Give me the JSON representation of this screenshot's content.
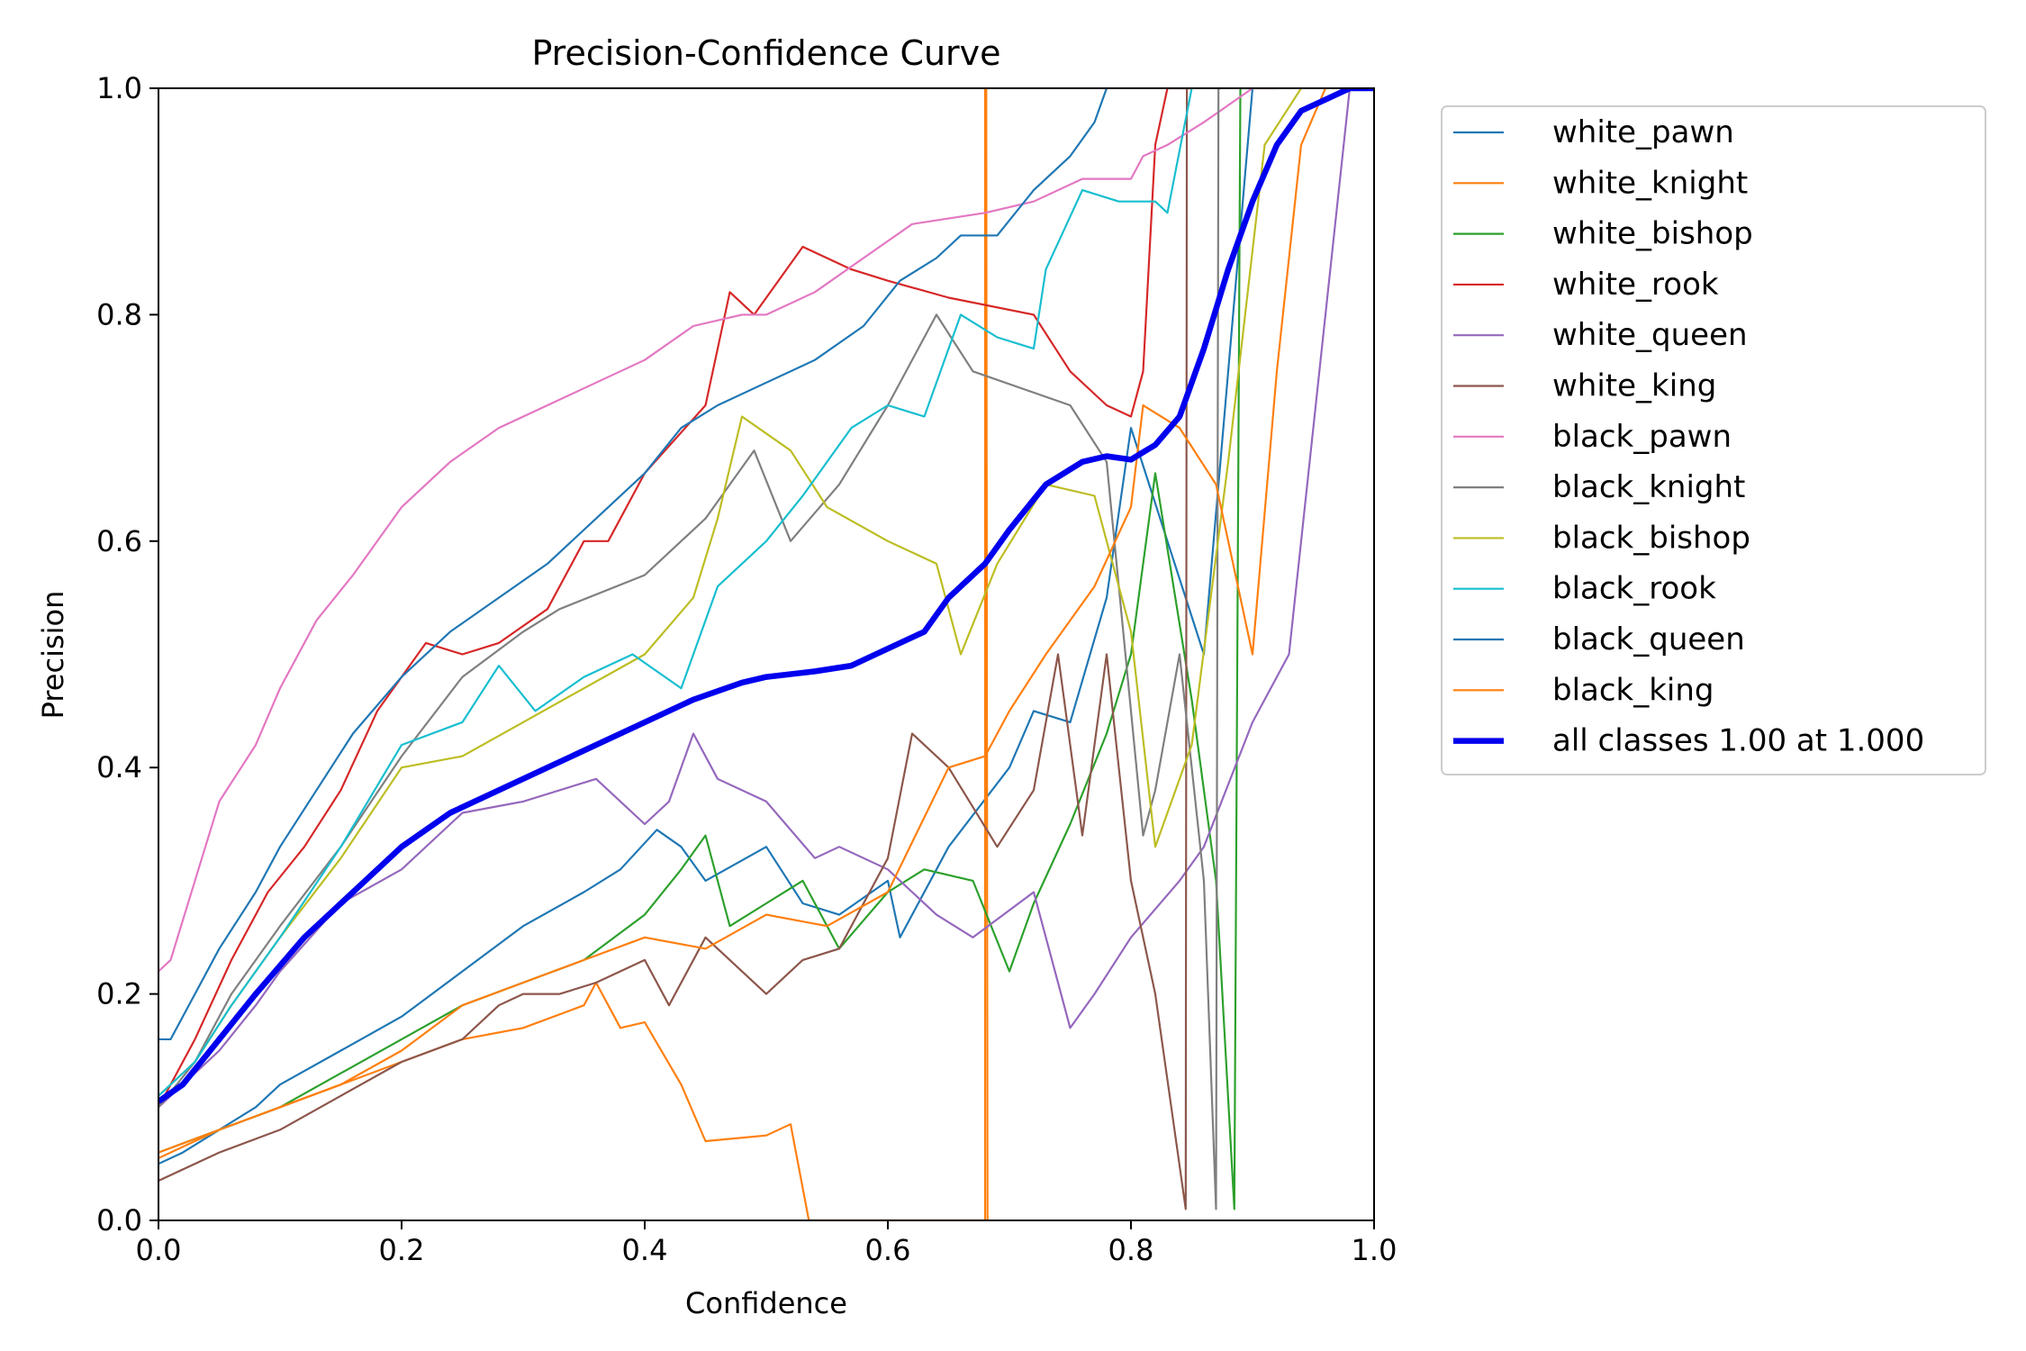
{
  "chart_data": {
    "type": "line",
    "title": "Precision-Confidence Curve",
    "xlabel": "Confidence",
    "ylabel": "Precision",
    "xlim": [
      0,
      1
    ],
    "ylim": [
      0,
      1
    ],
    "xticks": [
      "0.0",
      "0.2",
      "0.4",
      "0.6",
      "0.8",
      "1.0"
    ],
    "yticks": [
      "0.0",
      "0.2",
      "0.4",
      "0.6",
      "0.8",
      "1.0"
    ],
    "grid": false,
    "legend": "outside-right-top",
    "series": [
      {
        "name": "white_pawn",
        "color": "#1f77b4",
        "width": 1.5,
        "x": [
          0,
          0.02,
          0.05,
          0.08,
          0.1,
          0.15,
          0.2,
          0.25,
          0.3,
          0.35,
          0.38,
          0.41,
          0.43,
          0.45,
          0.5,
          0.53,
          0.56,
          0.6,
          0.61,
          0.65,
          0.7,
          0.72,
          0.75,
          0.78,
          0.8,
          0.83,
          0.86,
          0.88,
          0.9
        ],
        "y": [
          0.05,
          0.06,
          0.08,
          0.1,
          0.12,
          0.15,
          0.18,
          0.22,
          0.26,
          0.29,
          0.31,
          0.345,
          0.33,
          0.3,
          0.33,
          0.28,
          0.27,
          0.3,
          0.25,
          0.33,
          0.4,
          0.45,
          0.44,
          0.55,
          0.7,
          0.6,
          0.5,
          0.75,
          1.0
        ]
      },
      {
        "name": "white_knight",
        "color": "#ff7f0e",
        "width": 1.5,
        "x": [
          0,
          0.05,
          0.1,
          0.15,
          0.2,
          0.25,
          0.3,
          0.35,
          0.36,
          0.38,
          0.4,
          0.43,
          0.45,
          0.5,
          0.52,
          0.535,
          0.68,
          0.68,
          0.681,
          0.682
        ],
        "y": [
          0.055,
          0.08,
          0.1,
          0.12,
          0.14,
          0.16,
          0.17,
          0.19,
          0.21,
          0.17,
          0.175,
          0.12,
          0.07,
          0.075,
          0.085,
          0.0,
          0.0,
          1.0,
          1.0,
          0.0
        ]
      },
      {
        "name": "white_bishop",
        "color": "#2ca02c",
        "width": 1.5,
        "x": [
          0,
          0.05,
          0.1,
          0.15,
          0.2,
          0.25,
          0.3,
          0.35,
          0.4,
          0.43,
          0.45,
          0.47,
          0.5,
          0.53,
          0.56,
          0.6,
          0.63,
          0.67,
          0.7,
          0.72,
          0.75,
          0.78,
          0.8,
          0.82,
          0.85,
          0.87,
          0.885,
          0.89,
          0.9
        ],
        "y": [
          0.06,
          0.08,
          0.1,
          0.13,
          0.16,
          0.19,
          0.21,
          0.23,
          0.27,
          0.31,
          0.34,
          0.26,
          0.28,
          0.3,
          0.24,
          0.29,
          0.31,
          0.3,
          0.22,
          0.28,
          0.35,
          0.43,
          0.5,
          0.66,
          0.46,
          0.3,
          0.01,
          1.0,
          1.0
        ]
      },
      {
        "name": "white_rook",
        "color": "#d62728",
        "width": 1.5,
        "x": [
          0,
          0.03,
          0.06,
          0.09,
          0.12,
          0.15,
          0.18,
          0.22,
          0.25,
          0.28,
          0.32,
          0.35,
          0.37,
          0.4,
          0.45,
          0.47,
          0.49,
          0.53,
          0.57,
          0.6,
          0.65,
          0.72,
          0.75,
          0.78,
          0.8,
          0.81,
          0.82,
          0.83,
          0.85
        ],
        "y": [
          0.1,
          0.16,
          0.23,
          0.29,
          0.33,
          0.38,
          0.45,
          0.51,
          0.5,
          0.51,
          0.54,
          0.6,
          0.6,
          0.66,
          0.72,
          0.82,
          0.8,
          0.86,
          0.84,
          0.83,
          0.815,
          0.8,
          0.75,
          0.72,
          0.71,
          0.75,
          0.95,
          1.0,
          1.0
        ]
      },
      {
        "name": "white_queen",
        "color": "#9467bd",
        "width": 1.5,
        "x": [
          0,
          0.02,
          0.05,
          0.08,
          0.1,
          0.15,
          0.2,
          0.25,
          0.3,
          0.36,
          0.4,
          0.42,
          0.44,
          0.46,
          0.5,
          0.54,
          0.56,
          0.6,
          0.64,
          0.67,
          0.72,
          0.75,
          0.77,
          0.8,
          0.84,
          0.86,
          0.9,
          0.93,
          0.96,
          0.98,
          1.0
        ],
        "y": [
          0.1,
          0.12,
          0.15,
          0.19,
          0.22,
          0.28,
          0.31,
          0.36,
          0.37,
          0.39,
          0.35,
          0.37,
          0.43,
          0.39,
          0.37,
          0.32,
          0.33,
          0.31,
          0.27,
          0.25,
          0.29,
          0.17,
          0.2,
          0.25,
          0.3,
          0.33,
          0.44,
          0.5,
          0.8,
          1.0,
          1.0
        ]
      },
      {
        "name": "white_king",
        "color": "#8c564b",
        "width": 1.5,
        "x": [
          0,
          0.05,
          0.1,
          0.15,
          0.2,
          0.25,
          0.28,
          0.3,
          0.33,
          0.36,
          0.4,
          0.42,
          0.45,
          0.5,
          0.53,
          0.56,
          0.6,
          0.62,
          0.65,
          0.69,
          0.72,
          0.74,
          0.76,
          0.78,
          0.8,
          0.82,
          0.845,
          0.846,
          0.85
        ],
        "y": [
          0.035,
          0.06,
          0.08,
          0.11,
          0.14,
          0.16,
          0.19,
          0.2,
          0.2,
          0.21,
          0.23,
          0.19,
          0.25,
          0.2,
          0.23,
          0.24,
          0.32,
          0.43,
          0.4,
          0.33,
          0.38,
          0.5,
          0.34,
          0.5,
          0.3,
          0.2,
          0.01,
          1.0,
          1.0
        ]
      },
      {
        "name": "black_pawn",
        "color": "#e377c2",
        "width": 1.5,
        "x": [
          0,
          0.01,
          0.03,
          0.05,
          0.08,
          0.1,
          0.13,
          0.16,
          0.2,
          0.24,
          0.28,
          0.32,
          0.36,
          0.4,
          0.44,
          0.48,
          0.5,
          0.54,
          0.58,
          0.62,
          0.68,
          0.72,
          0.76,
          0.8,
          0.81,
          0.83,
          0.86,
          0.9,
          0.92
        ],
        "y": [
          0.22,
          0.23,
          0.3,
          0.37,
          0.42,
          0.47,
          0.53,
          0.57,
          0.63,
          0.67,
          0.7,
          0.72,
          0.74,
          0.76,
          0.79,
          0.8,
          0.8,
          0.82,
          0.85,
          0.88,
          0.89,
          0.9,
          0.92,
          0.92,
          0.94,
          0.95,
          0.97,
          1.0,
          1.0
        ]
      },
      {
        "name": "black_knight",
        "color": "#7f7f7f",
        "width": 1.5,
        "x": [
          0,
          0.03,
          0.06,
          0.1,
          0.15,
          0.2,
          0.25,
          0.3,
          0.33,
          0.4,
          0.45,
          0.49,
          0.52,
          0.56,
          0.6,
          0.64,
          0.67,
          0.75,
          0.78,
          0.81,
          0.82,
          0.84,
          0.86,
          0.87,
          0.872,
          0.874
        ],
        "y": [
          0.1,
          0.14,
          0.2,
          0.26,
          0.33,
          0.41,
          0.48,
          0.52,
          0.54,
          0.57,
          0.62,
          0.68,
          0.6,
          0.65,
          0.72,
          0.8,
          0.75,
          0.72,
          0.67,
          0.34,
          0.38,
          0.5,
          0.3,
          0.01,
          1.0,
          1.0
        ]
      },
      {
        "name": "black_bishop",
        "color": "#bcbd22",
        "width": 1.5,
        "x": [
          0,
          0.03,
          0.06,
          0.1,
          0.15,
          0.2,
          0.25,
          0.3,
          0.35,
          0.4,
          0.44,
          0.46,
          0.48,
          0.52,
          0.55,
          0.6,
          0.64,
          0.66,
          0.69,
          0.73,
          0.77,
          0.8,
          0.82,
          0.85,
          0.88,
          0.91,
          0.94
        ],
        "y": [
          0.11,
          0.14,
          0.19,
          0.25,
          0.32,
          0.4,
          0.41,
          0.44,
          0.47,
          0.5,
          0.55,
          0.62,
          0.71,
          0.68,
          0.63,
          0.6,
          0.58,
          0.5,
          0.58,
          0.65,
          0.64,
          0.52,
          0.33,
          0.42,
          0.67,
          0.95,
          1.0
        ]
      },
      {
        "name": "black_rook",
        "color": "#17becf",
        "width": 1.5,
        "x": [
          0,
          0.03,
          0.06,
          0.1,
          0.15,
          0.2,
          0.25,
          0.28,
          0.31,
          0.35,
          0.39,
          0.43,
          0.46,
          0.5,
          0.53,
          0.57,
          0.6,
          0.63,
          0.66,
          0.69,
          0.72,
          0.73,
          0.76,
          0.79,
          0.82,
          0.83,
          0.85
        ],
        "y": [
          0.11,
          0.14,
          0.19,
          0.25,
          0.33,
          0.42,
          0.44,
          0.49,
          0.45,
          0.48,
          0.5,
          0.47,
          0.56,
          0.6,
          0.64,
          0.7,
          0.72,
          0.71,
          0.8,
          0.78,
          0.77,
          0.84,
          0.91,
          0.9,
          0.9,
          0.89,
          1.0
        ]
      },
      {
        "name": "black_queen",
        "color": "#1f77b4",
        "width": 1.5,
        "x": [
          0,
          0.01,
          0.03,
          0.05,
          0.08,
          0.1,
          0.13,
          0.16,
          0.2,
          0.24,
          0.28,
          0.32,
          0.36,
          0.4,
          0.43,
          0.46,
          0.5,
          0.54,
          0.58,
          0.61,
          0.64,
          0.66,
          0.69,
          0.72,
          0.75,
          0.77,
          0.78
        ],
        "y": [
          0.16,
          0.16,
          0.2,
          0.24,
          0.29,
          0.33,
          0.38,
          0.43,
          0.48,
          0.52,
          0.55,
          0.58,
          0.62,
          0.66,
          0.7,
          0.72,
          0.74,
          0.76,
          0.79,
          0.83,
          0.85,
          0.87,
          0.87,
          0.91,
          0.94,
          0.97,
          1.0
        ]
      },
      {
        "name": "black_king",
        "color": "#ff7f0e",
        "width": 1.5,
        "x": [
          0,
          0.05,
          0.1,
          0.15,
          0.2,
          0.25,
          0.3,
          0.35,
          0.4,
          0.45,
          0.5,
          0.55,
          0.6,
          0.65,
          0.68,
          0.7,
          0.73,
          0.77,
          0.8,
          0.81,
          0.84,
          0.87,
          0.88,
          0.9,
          0.92,
          0.94,
          0.96
        ],
        "y": [
          0.06,
          0.08,
          0.1,
          0.12,
          0.15,
          0.19,
          0.21,
          0.23,
          0.25,
          0.24,
          0.27,
          0.26,
          0.29,
          0.4,
          0.41,
          0.45,
          0.5,
          0.56,
          0.63,
          0.72,
          0.7,
          0.65,
          0.6,
          0.5,
          0.75,
          0.95,
          1.0
        ]
      },
      {
        "name": "all classes 1.00 at 1.000",
        "color": "#0000ee",
        "width": 4.5,
        "x": [
          0,
          0.02,
          0.05,
          0.08,
          0.12,
          0.16,
          0.2,
          0.24,
          0.28,
          0.32,
          0.36,
          0.4,
          0.44,
          0.48,
          0.5,
          0.54,
          0.57,
          0.6,
          0.63,
          0.65,
          0.68,
          0.7,
          0.73,
          0.76,
          0.78,
          0.8,
          0.82,
          0.84,
          0.86,
          0.88,
          0.9,
          0.92,
          0.94,
          0.96,
          0.98,
          1.0
        ],
        "y": [
          0.105,
          0.12,
          0.16,
          0.2,
          0.25,
          0.29,
          0.33,
          0.36,
          0.38,
          0.4,
          0.42,
          0.44,
          0.46,
          0.475,
          0.48,
          0.485,
          0.49,
          0.505,
          0.52,
          0.55,
          0.58,
          0.61,
          0.65,
          0.67,
          0.675,
          0.672,
          0.685,
          0.71,
          0.77,
          0.84,
          0.9,
          0.95,
          0.98,
          0.99,
          1.0,
          1.0
        ]
      }
    ]
  }
}
